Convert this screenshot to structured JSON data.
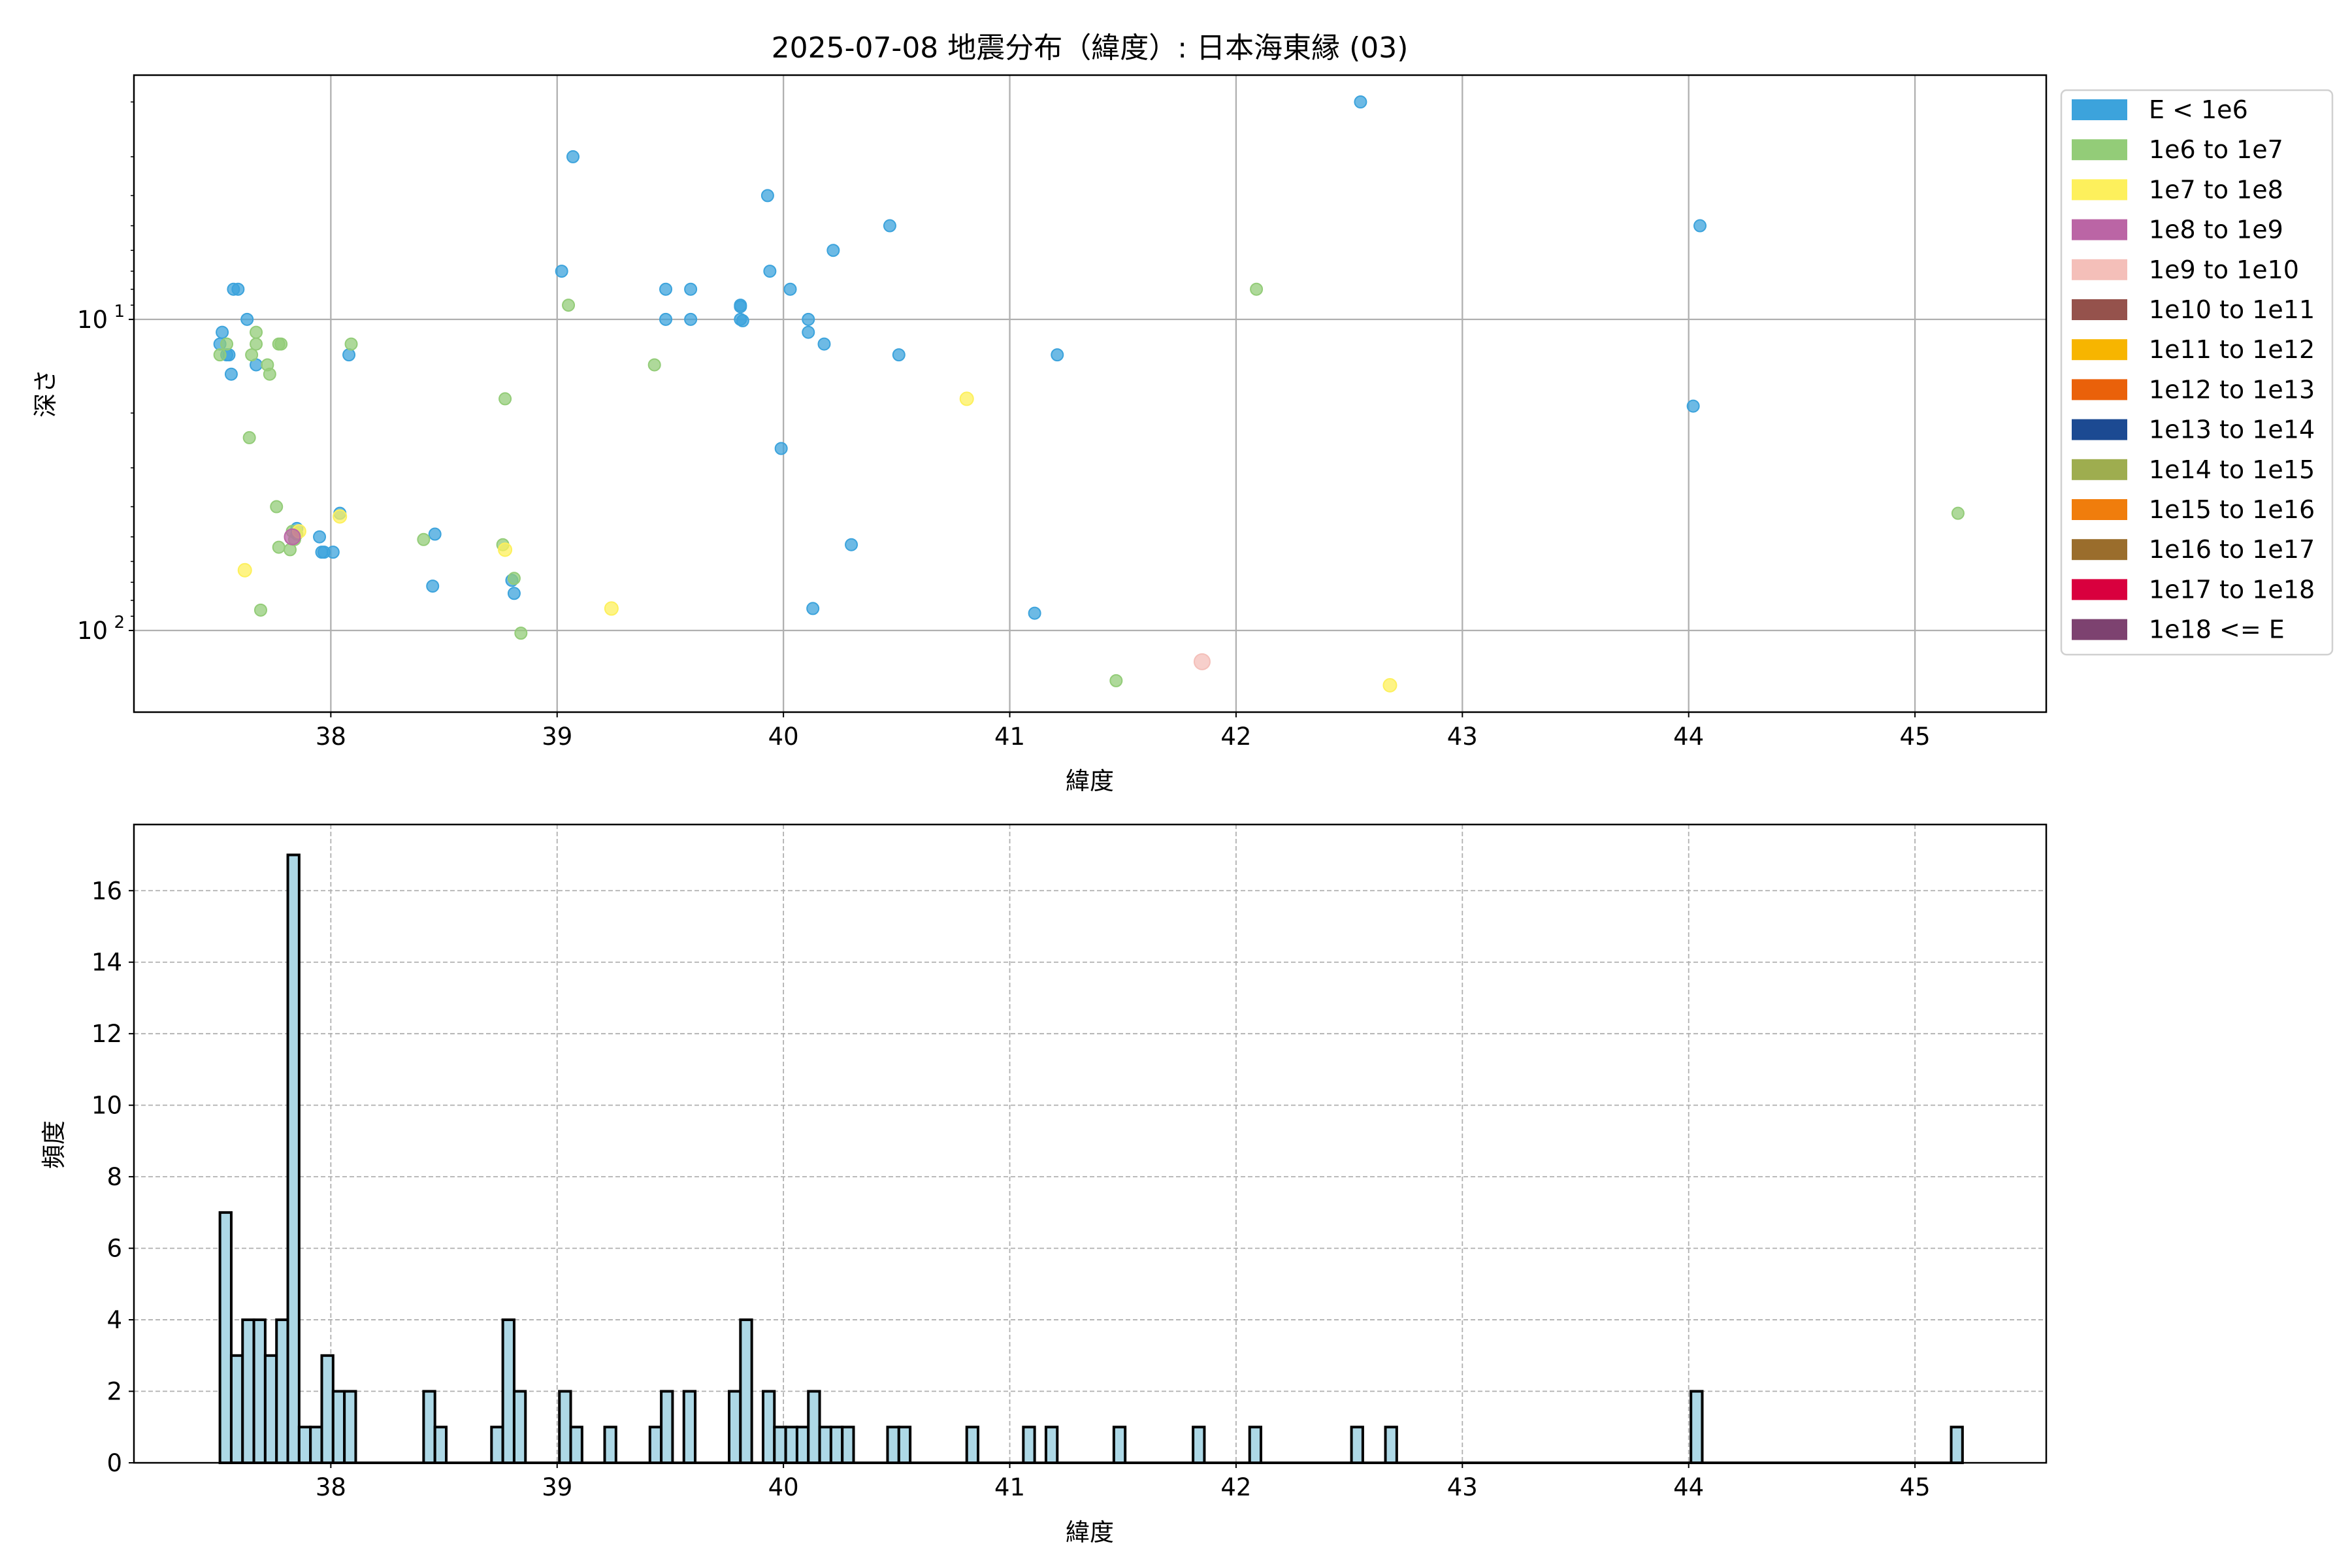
{
  "chart_data": [
    {
      "type": "scatter",
      "title": "2025-07-08 地震分布（緯度）: 日本海東縁 (03)",
      "xlabel": "緯度",
      "ylabel": "深さ",
      "xlim": [
        37.13,
        45.58
      ],
      "ylim": [
        183,
        1.64
      ],
      "yscale": "log",
      "yinverted": true,
      "grid": true,
      "xticks": [
        38,
        39,
        40,
        41,
        42,
        43,
        44,
        45
      ],
      "yticks": [
        {
          "value": 10,
          "base": "10",
          "exp": "1"
        },
        {
          "value": 100,
          "base": "10",
          "exp": "2"
        }
      ],
      "legend_position": "outside-right",
      "legend": [
        {
          "label": "E < 1e6",
          "color": "#3ca3dc"
        },
        {
          "label": "1e6 to 1e7",
          "color": "#93cc78"
        },
        {
          "label": "1e7 to 1e8",
          "color": "#fdf05c"
        },
        {
          "label": "1e8 to 1e9",
          "color": "#bb65a5"
        },
        {
          "label": "1e9 to 1e10",
          "color": "#f4bfb9"
        },
        {
          "label": "1e10 to 1e11",
          "color": "#95524c"
        },
        {
          "label": "1e11 to 1e12",
          "color": "#f7b500"
        },
        {
          "label": "1e12 to 1e13",
          "color": "#ea610a"
        },
        {
          "label": "1e13 to 1e14",
          "color": "#1c4a92"
        },
        {
          "label": "1e14 to 1e15",
          "color": "#9ead4f"
        },
        {
          "label": "1e15 to 1e16",
          "color": "#f07d0c"
        },
        {
          "label": "1e16 to 1e17",
          "color": "#9a6d2c"
        },
        {
          "label": "1e17 to 1e18",
          "color": "#d9003e"
        },
        {
          "label": "1e18 <= E",
          "color": "#7d4270"
        }
      ],
      "points": [
        {
          "lat": 42.55,
          "depth": 2.0,
          "class": 0
        },
        {
          "lat": 39.07,
          "depth": 3.0,
          "class": 0
        },
        {
          "lat": 39.93,
          "depth": 4.0,
          "class": 0
        },
        {
          "lat": 40.47,
          "depth": 5.0,
          "class": 0
        },
        {
          "lat": 44.05,
          "depth": 5.0,
          "class": 0
        },
        {
          "lat": 40.22,
          "depth": 6.0,
          "class": 0
        },
        {
          "lat": 39.02,
          "depth": 7.0,
          "class": 0
        },
        {
          "lat": 39.94,
          "depth": 7.0,
          "class": 0
        },
        {
          "lat": 39.48,
          "depth": 8.0,
          "class": 0
        },
        {
          "lat": 39.59,
          "depth": 8.0,
          "class": 0
        },
        {
          "lat": 40.03,
          "depth": 8.0,
          "class": 0
        },
        {
          "lat": 37.57,
          "depth": 8.0,
          "class": 0
        },
        {
          "lat": 37.59,
          "depth": 8.0,
          "class": 0
        },
        {
          "lat": 39.81,
          "depth": 9.0,
          "class": 0
        },
        {
          "lat": 39.81,
          "depth": 9.1,
          "class": 0
        },
        {
          "lat": 37.63,
          "depth": 10.0,
          "class": 0
        },
        {
          "lat": 39.48,
          "depth": 10.0,
          "class": 0
        },
        {
          "lat": 39.59,
          "depth": 10.0,
          "class": 0
        },
        {
          "lat": 39.81,
          "depth": 10.0,
          "class": 0
        },
        {
          "lat": 39.82,
          "depth": 10.1,
          "class": 0
        },
        {
          "lat": 40.11,
          "depth": 10.0,
          "class": 0
        },
        {
          "lat": 37.52,
          "depth": 11.0,
          "class": 0
        },
        {
          "lat": 40.11,
          "depth": 11.0,
          "class": 0
        },
        {
          "lat": 40.18,
          "depth": 12.0,
          "class": 0
        },
        {
          "lat": 37.51,
          "depth": 12.0,
          "class": 0
        },
        {
          "lat": 37.55,
          "depth": 13.0,
          "class": 0
        },
        {
          "lat": 37.54,
          "depth": 13.0,
          "class": 0
        },
        {
          "lat": 38.08,
          "depth": 13.0,
          "class": 0
        },
        {
          "lat": 40.51,
          "depth": 13.0,
          "class": 0
        },
        {
          "lat": 41.21,
          "depth": 13.0,
          "class": 0
        },
        {
          "lat": 37.67,
          "depth": 14.0,
          "class": 0
        },
        {
          "lat": 37.56,
          "depth": 15.0,
          "class": 0
        },
        {
          "lat": 44.02,
          "depth": 19.0,
          "class": 0
        },
        {
          "lat": 39.99,
          "depth": 26.0,
          "class": 0
        },
        {
          "lat": 38.04,
          "depth": 42.0,
          "class": 0
        },
        {
          "lat": 38.46,
          "depth": 49.0,
          "class": 0
        },
        {
          "lat": 37.85,
          "depth": 47.0,
          "class": 0
        },
        {
          "lat": 37.95,
          "depth": 50.0,
          "class": 0
        },
        {
          "lat": 37.97,
          "depth": 56.0,
          "class": 0
        },
        {
          "lat": 37.96,
          "depth": 56.0,
          "class": 0
        },
        {
          "lat": 38.01,
          "depth": 56.0,
          "class": 0
        },
        {
          "lat": 40.3,
          "depth": 53.0,
          "class": 0
        },
        {
          "lat": 38.8,
          "depth": 69.0,
          "class": 0
        },
        {
          "lat": 38.81,
          "depth": 76.0,
          "class": 0
        },
        {
          "lat": 38.45,
          "depth": 72.0,
          "class": 0
        },
        {
          "lat": 40.13,
          "depth": 85.0,
          "class": 0
        },
        {
          "lat": 41.11,
          "depth": 88.0,
          "class": 0
        },
        {
          "lat": 42.09,
          "depth": 8.0,
          "class": 1
        },
        {
          "lat": 39.05,
          "depth": 9.0,
          "class": 1
        },
        {
          "lat": 37.67,
          "depth": 11.0,
          "class": 1
        },
        {
          "lat": 37.54,
          "depth": 12.0,
          "class": 1
        },
        {
          "lat": 37.67,
          "depth": 12.0,
          "class": 1
        },
        {
          "lat": 37.77,
          "depth": 12.0,
          "class": 1
        },
        {
          "lat": 37.78,
          "depth": 12.0,
          "class": 1
        },
        {
          "lat": 38.09,
          "depth": 12.0,
          "class": 1
        },
        {
          "lat": 37.51,
          "depth": 13.0,
          "class": 1
        },
        {
          "lat": 37.65,
          "depth": 13.0,
          "class": 1
        },
        {
          "lat": 37.72,
          "depth": 14.0,
          "class": 1
        },
        {
          "lat": 37.73,
          "depth": 15.0,
          "class": 1
        },
        {
          "lat": 39.43,
          "depth": 14.0,
          "class": 1
        },
        {
          "lat": 38.77,
          "depth": 18.0,
          "class": 1
        },
        {
          "lat": 37.64,
          "depth": 24.0,
          "class": 1
        },
        {
          "lat": 37.76,
          "depth": 40.0,
          "class": 1
        },
        {
          "lat": 37.83,
          "depth": 48.0,
          "class": 1
        },
        {
          "lat": 37.85,
          "depth": 49.0,
          "class": 1
        },
        {
          "lat": 37.84,
          "depth": 51.0,
          "class": 1
        },
        {
          "lat": 37.77,
          "depth": 54.0,
          "class": 1
        },
        {
          "lat": 37.82,
          "depth": 55.0,
          "class": 1
        },
        {
          "lat": 38.41,
          "depth": 51.0,
          "class": 1
        },
        {
          "lat": 38.76,
          "depth": 53.0,
          "class": 1
        },
        {
          "lat": 38.81,
          "depth": 68.0,
          "class": 1
        },
        {
          "lat": 37.69,
          "depth": 86.0,
          "class": 1
        },
        {
          "lat": 38.84,
          "depth": 102.0,
          "class": 1
        },
        {
          "lat": 41.47,
          "depth": 145.0,
          "class": 1
        },
        {
          "lat": 45.19,
          "depth": 42.0,
          "class": 1
        },
        {
          "lat": 40.81,
          "depth": 18.0,
          "class": 2
        },
        {
          "lat": 37.62,
          "depth": 64.0,
          "class": 2
        },
        {
          "lat": 39.24,
          "depth": 85.0,
          "class": 2
        },
        {
          "lat": 42.68,
          "depth": 150.0,
          "class": 2
        },
        {
          "lat": 38.77,
          "depth": 55.0,
          "class": 2
        },
        {
          "lat": 38.04,
          "depth": 43.0,
          "class": 2
        },
        {
          "lat": 37.86,
          "depth": 48.0,
          "class": 2
        },
        {
          "lat": 37.83,
          "depth": 50.0,
          "class": 3
        },
        {
          "lat": 41.85,
          "depth": 126.0,
          "class": 4
        }
      ]
    },
    {
      "type": "bar",
      "subtype": "histogram",
      "xlabel": "緯度",
      "ylabel": "頻度",
      "xlim": [
        37.13,
        45.58
      ],
      "ylim": [
        0,
        17.85
      ],
      "grid": true,
      "grid_style": "dashed",
      "xticks": [
        38,
        39,
        40,
        41,
        42,
        43,
        44,
        45
      ],
      "yticks": [
        0,
        2,
        4,
        6,
        8,
        10,
        12,
        14,
        16
      ],
      "bar_color": "#add8e6",
      "edge_color": "#000000",
      "bin_start": 37.51,
      "bin_width": 0.05,
      "counts": [
        7,
        3,
        4,
        4,
        3,
        4,
        17,
        1,
        1,
        3,
        2,
        2,
        0,
        0,
        0,
        0,
        0,
        0,
        2,
        1,
        0,
        0,
        0,
        0,
        1,
        4,
        2,
        0,
        0,
        0,
        2,
        1,
        0,
        0,
        1,
        0,
        0,
        0,
        1,
        2,
        0,
        2,
        0,
        0,
        0,
        2,
        4,
        0,
        2,
        1,
        1,
        1,
        2,
        1,
        1,
        1,
        0,
        0,
        0,
        1,
        1,
        0,
        0,
        0,
        0,
        0,
        1,
        0,
        0,
        0,
        0,
        1,
        0,
        1,
        0,
        0,
        0,
        0,
        0,
        1,
        0,
        0,
        0,
        0,
        0,
        0,
        1,
        0,
        0,
        0,
        0,
        1,
        0,
        0,
        0,
        0,
        0,
        0,
        0,
        0,
        1,
        0,
        0,
        1,
        0,
        0,
        0,
        0,
        0,
        0,
        0,
        0,
        0,
        0,
        0,
        0,
        0,
        0,
        0,
        0,
        0,
        0,
        0,
        0,
        0,
        0,
        0,
        0,
        0,
        0,
        2,
        0,
        0,
        0,
        0,
        0,
        0,
        0,
        0,
        0,
        0,
        0,
        0,
        0,
        0,
        0,
        0,
        0,
        0,
        0,
        0,
        0,
        0,
        1
      ]
    }
  ]
}
